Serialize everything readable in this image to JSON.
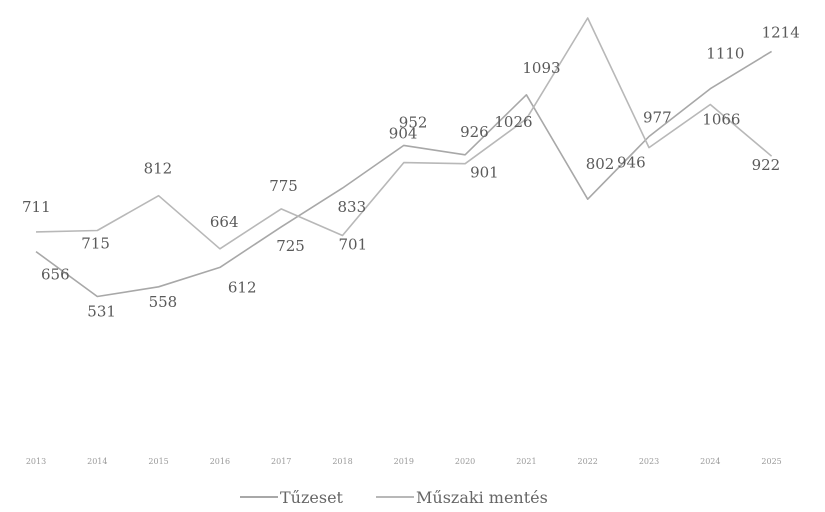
{
  "chart_data": {
    "type": "line",
    "title": "",
    "xlabel": "",
    "ylabel": "",
    "categories": [
      "2013",
      "2014",
      "2015",
      "2016",
      "2017",
      "2018",
      "2019",
      "2020",
      "2021",
      "2022",
      "2023",
      "2024",
      "2025"
    ],
    "ylim": [
      0,
      1400
    ],
    "grid": false,
    "legend_position": "bottom",
    "series": [
      {
        "name": "Tűzeset",
        "color": "#a8a8a8",
        "values": [
          656,
          531,
          558,
          612,
          725,
          833,
          952,
          926,
          1093,
          802,
          977,
          1110,
          1214
        ]
      },
      {
        "name": "Műszaki mentés",
        "color": "#b8b8b8",
        "values": [
          711,
          715,
          812,
          664,
          775,
          701,
          904,
          901,
          1026,
          1307,
          946,
          1066,
          922
        ]
      }
    ]
  }
}
